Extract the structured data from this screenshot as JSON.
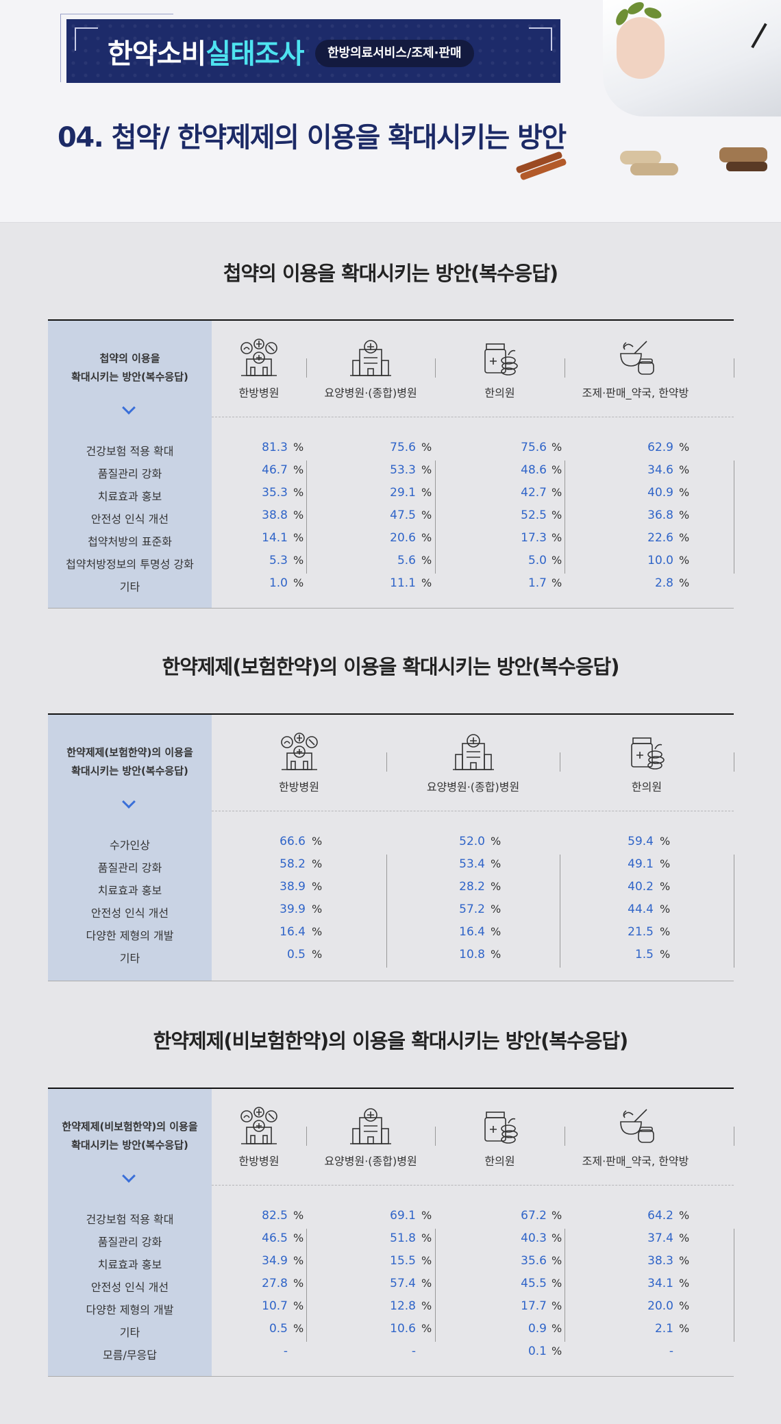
{
  "header": {
    "banner_title_part1": "한약소비",
    "banner_title_part2": "실태조사",
    "banner_pill": "한방의료서비스/조제·판매",
    "page_title": "04. 첩약/ 한약제제의 이용을 확대시키는 방안"
  },
  "tables": [
    {
      "title": "첩약의 이용을 확대시키는 방안(복수응답)",
      "header_line1": "첩약의 이용을",
      "header_line2": "확대시키는 방안(복수응답)",
      "columns": [
        {
          "label": "한방병원",
          "icon": "korean-medicine-hospital-icon"
        },
        {
          "label": "요양병원·(종합)병원",
          "icon": "hospital-building-icon"
        },
        {
          "label": "한의원",
          "icon": "herbal-clinic-icon"
        },
        {
          "label": "조제·판매_약국, 한약방",
          "icon": "mortar-pestle-icon"
        }
      ],
      "unit": "%",
      "rows": [
        {
          "label": "건강보험 적용 확대",
          "values": [
            "81.3",
            "75.6",
            "75.6",
            "62.9"
          ]
        },
        {
          "label": "품질관리 강화",
          "values": [
            "46.7",
            "53.3",
            "48.6",
            "34.6"
          ]
        },
        {
          "label": "치료효과 홍보",
          "values": [
            "35.3",
            "29.1",
            "42.7",
            "40.9"
          ]
        },
        {
          "label": "안전성 인식 개선",
          "values": [
            "38.8",
            "47.5",
            "52.5",
            "36.8"
          ]
        },
        {
          "label": "첩약처방의 표준화",
          "values": [
            "14.1",
            "20.6",
            "17.3",
            "22.6"
          ]
        },
        {
          "label": "첩약처방정보의 투명성 강화",
          "values": [
            "5.3",
            "5.6",
            "5.0",
            "10.0"
          ]
        },
        {
          "label": "기타",
          "values": [
            "1.0",
            "11.1",
            "1.7",
            "2.8"
          ]
        }
      ]
    },
    {
      "title": "한약제제(보험한약)의 이용을 확대시키는 방안(복수응답)",
      "header_line1": "한약제제(보험한약)의 이용을",
      "header_line2": "확대시키는 방안(복수응답)",
      "columns": [
        {
          "label": "한방병원",
          "icon": "korean-medicine-hospital-icon"
        },
        {
          "label": "요양병원·(종합)병원",
          "icon": "hospital-building-icon"
        },
        {
          "label": "한의원",
          "icon": "herbal-clinic-icon"
        }
      ],
      "unit": "%",
      "rows": [
        {
          "label": "수가인상",
          "values": [
            "66.6",
            "52.0",
            "59.4"
          ]
        },
        {
          "label": "품질관리 강화",
          "values": [
            "58.2",
            "53.4",
            "49.1"
          ]
        },
        {
          "label": "치료효과 홍보",
          "values": [
            "38.9",
            "28.2",
            "40.2"
          ]
        },
        {
          "label": "안전성 인식 개선",
          "values": [
            "39.9",
            "57.2",
            "44.4"
          ]
        },
        {
          "label": "다양한 제형의 개발",
          "values": [
            "16.4",
            "16.4",
            "21.5"
          ]
        },
        {
          "label": "기타",
          "values": [
            "0.5",
            "10.8",
            "1.5"
          ]
        }
      ]
    },
    {
      "title": "한약제제(비보험한약)의 이용을 확대시키는 방안(복수응답)",
      "header_line1": "한약제제(비보험한약)의 이용을",
      "header_line2": "확대시키는 방안(복수응답)",
      "columns": [
        {
          "label": "한방병원",
          "icon": "korean-medicine-hospital-icon"
        },
        {
          "label": "요양병원·(종합)병원",
          "icon": "hospital-building-icon"
        },
        {
          "label": "한의원",
          "icon": "herbal-clinic-icon"
        },
        {
          "label": "조제·판매_약국, 한약방",
          "icon": "mortar-pestle-icon"
        }
      ],
      "unit": "%",
      "rows": [
        {
          "label": "건강보험 적용 확대",
          "values": [
            "82.5",
            "69.1",
            "67.2",
            "64.2"
          ]
        },
        {
          "label": "품질관리 강화",
          "values": [
            "46.5",
            "51.8",
            "40.3",
            "37.4"
          ]
        },
        {
          "label": "치료효과 홍보",
          "values": [
            "34.9",
            "15.5",
            "35.6",
            "38.3"
          ]
        },
        {
          "label": "안전성 인식 개선",
          "values": [
            "27.8",
            "57.4",
            "45.5",
            "34.1"
          ]
        },
        {
          "label": "다양한 제형의 개발",
          "values": [
            "10.7",
            "12.8",
            "17.7",
            "20.0"
          ]
        },
        {
          "label": "기타",
          "values": [
            "0.5",
            "10.6",
            "0.9",
            "2.1"
          ]
        },
        {
          "label": "모름/무응답",
          "values": [
            "-",
            "-",
            "0.1",
            "-"
          ]
        }
      ]
    }
  ]
}
